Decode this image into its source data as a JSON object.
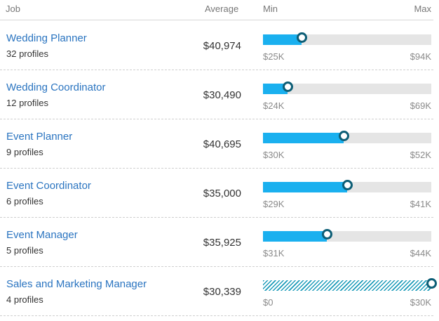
{
  "header": {
    "job": "Job",
    "average": "Average",
    "min": "Min",
    "max": "Max"
  },
  "rows": [
    {
      "title": "Wedding Planner",
      "profiles": "32 profiles",
      "average": "$40,974",
      "min": "$25K",
      "max": "$94K",
      "level": 0.23,
      "hatched": false
    },
    {
      "title": "Wedding Coordinator",
      "profiles": "12 profiles",
      "average": "$30,490",
      "min": "$24K",
      "max": "$69K",
      "level": 0.145,
      "hatched": false
    },
    {
      "title": "Event Planner",
      "profiles": "9 profiles",
      "average": "$40,695",
      "min": "$30K",
      "max": "$52K",
      "level": 0.48,
      "hatched": false
    },
    {
      "title": "Event Coordinator",
      "profiles": "6 profiles",
      "average": "$35,000",
      "min": "$29K",
      "max": "$41K",
      "level": 0.5,
      "hatched": false
    },
    {
      "title": "Event Manager",
      "profiles": "5 profiles",
      "average": "$35,925",
      "min": "$31K",
      "max": "$44K",
      "level": 0.38,
      "hatched": false
    },
    {
      "title": "Sales and Marketing Manager",
      "profiles": "4 profiles",
      "average": "$30,339",
      "min": "$0",
      "max": "$30K",
      "level": 1.0,
      "hatched": true
    }
  ]
}
